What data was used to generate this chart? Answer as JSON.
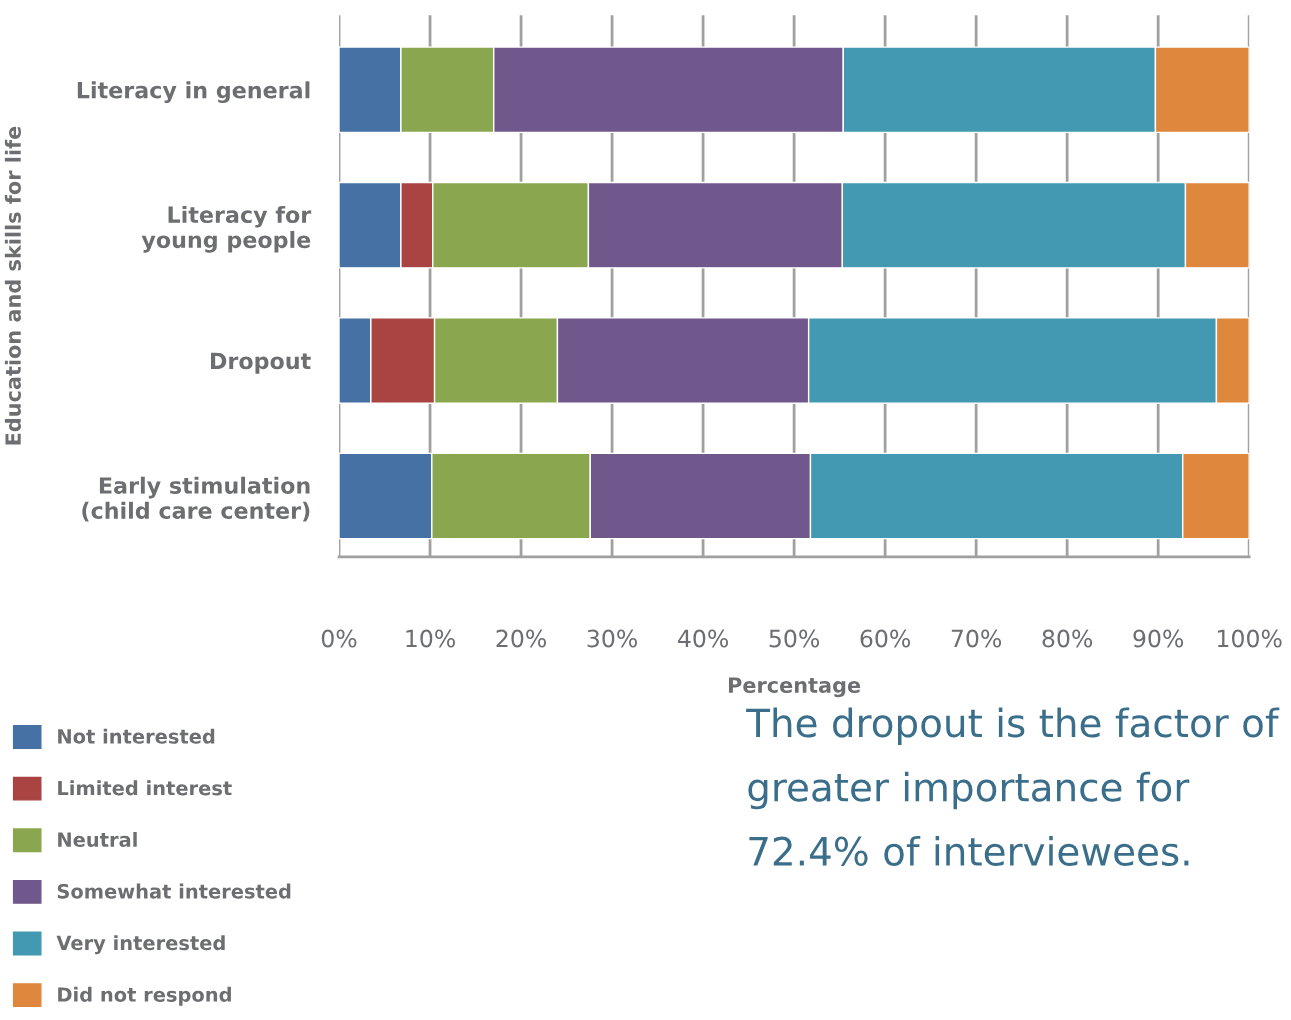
{
  "chart_data": {
    "type": "bar",
    "orientation": "horizontal",
    "stacked": true,
    "ylabel": "Education and skills for life",
    "xlabel": "Percentage",
    "categories": [
      "Literacy in general",
      "Literacy for\nyoung people",
      "Dropout",
      "Early stimulation\n(child care center)"
    ],
    "series": [
      {
        "name": "Not interested",
        "color": "#4571a5",
        "values": [
          6.8,
          6.8,
          3.5,
          10.2
        ]
      },
      {
        "name": "Limited interest",
        "color": "#a94442",
        "values": [
          0,
          3.5,
          7.0,
          0
        ]
      },
      {
        "name": "Neutral",
        "color": "#8aa64e",
        "values": [
          10.2,
          17.1,
          13.5,
          17.4
        ]
      },
      {
        "name": "Somewhat interested",
        "color": "#70588c",
        "values": [
          38.4,
          27.9,
          27.6,
          24.2
        ]
      },
      {
        "name": "Very interested",
        "color": "#4299b1",
        "values": [
          34.3,
          37.7,
          44.8,
          40.9
        ]
      },
      {
        "name": "Did not respond",
        "color": "#de873d",
        "values": [
          10.3,
          7.0,
          3.6,
          7.3
        ]
      }
    ],
    "xlim": [
      0,
      100
    ],
    "xticks": [
      {
        "value": 0,
        "label": "0%"
      },
      {
        "value": 10,
        "label": "10%"
      },
      {
        "value": 20,
        "label": "20%"
      },
      {
        "value": 30,
        "label": "30%"
      },
      {
        "value": 40,
        "label": "40%"
      },
      {
        "value": 50,
        "label": "50%"
      },
      {
        "value": 60,
        "label": "60%"
      },
      {
        "value": 70,
        "label": "70%"
      },
      {
        "value": 80,
        "label": "80%"
      },
      {
        "value": 90,
        "label": "90%"
      },
      {
        "value": 100,
        "label": "100%"
      }
    ],
    "grid": "x",
    "legend": "bottom left",
    "annotations": [
      "The dropout is the factor of greater importance for 72.4% of interviewees."
    ]
  }
}
